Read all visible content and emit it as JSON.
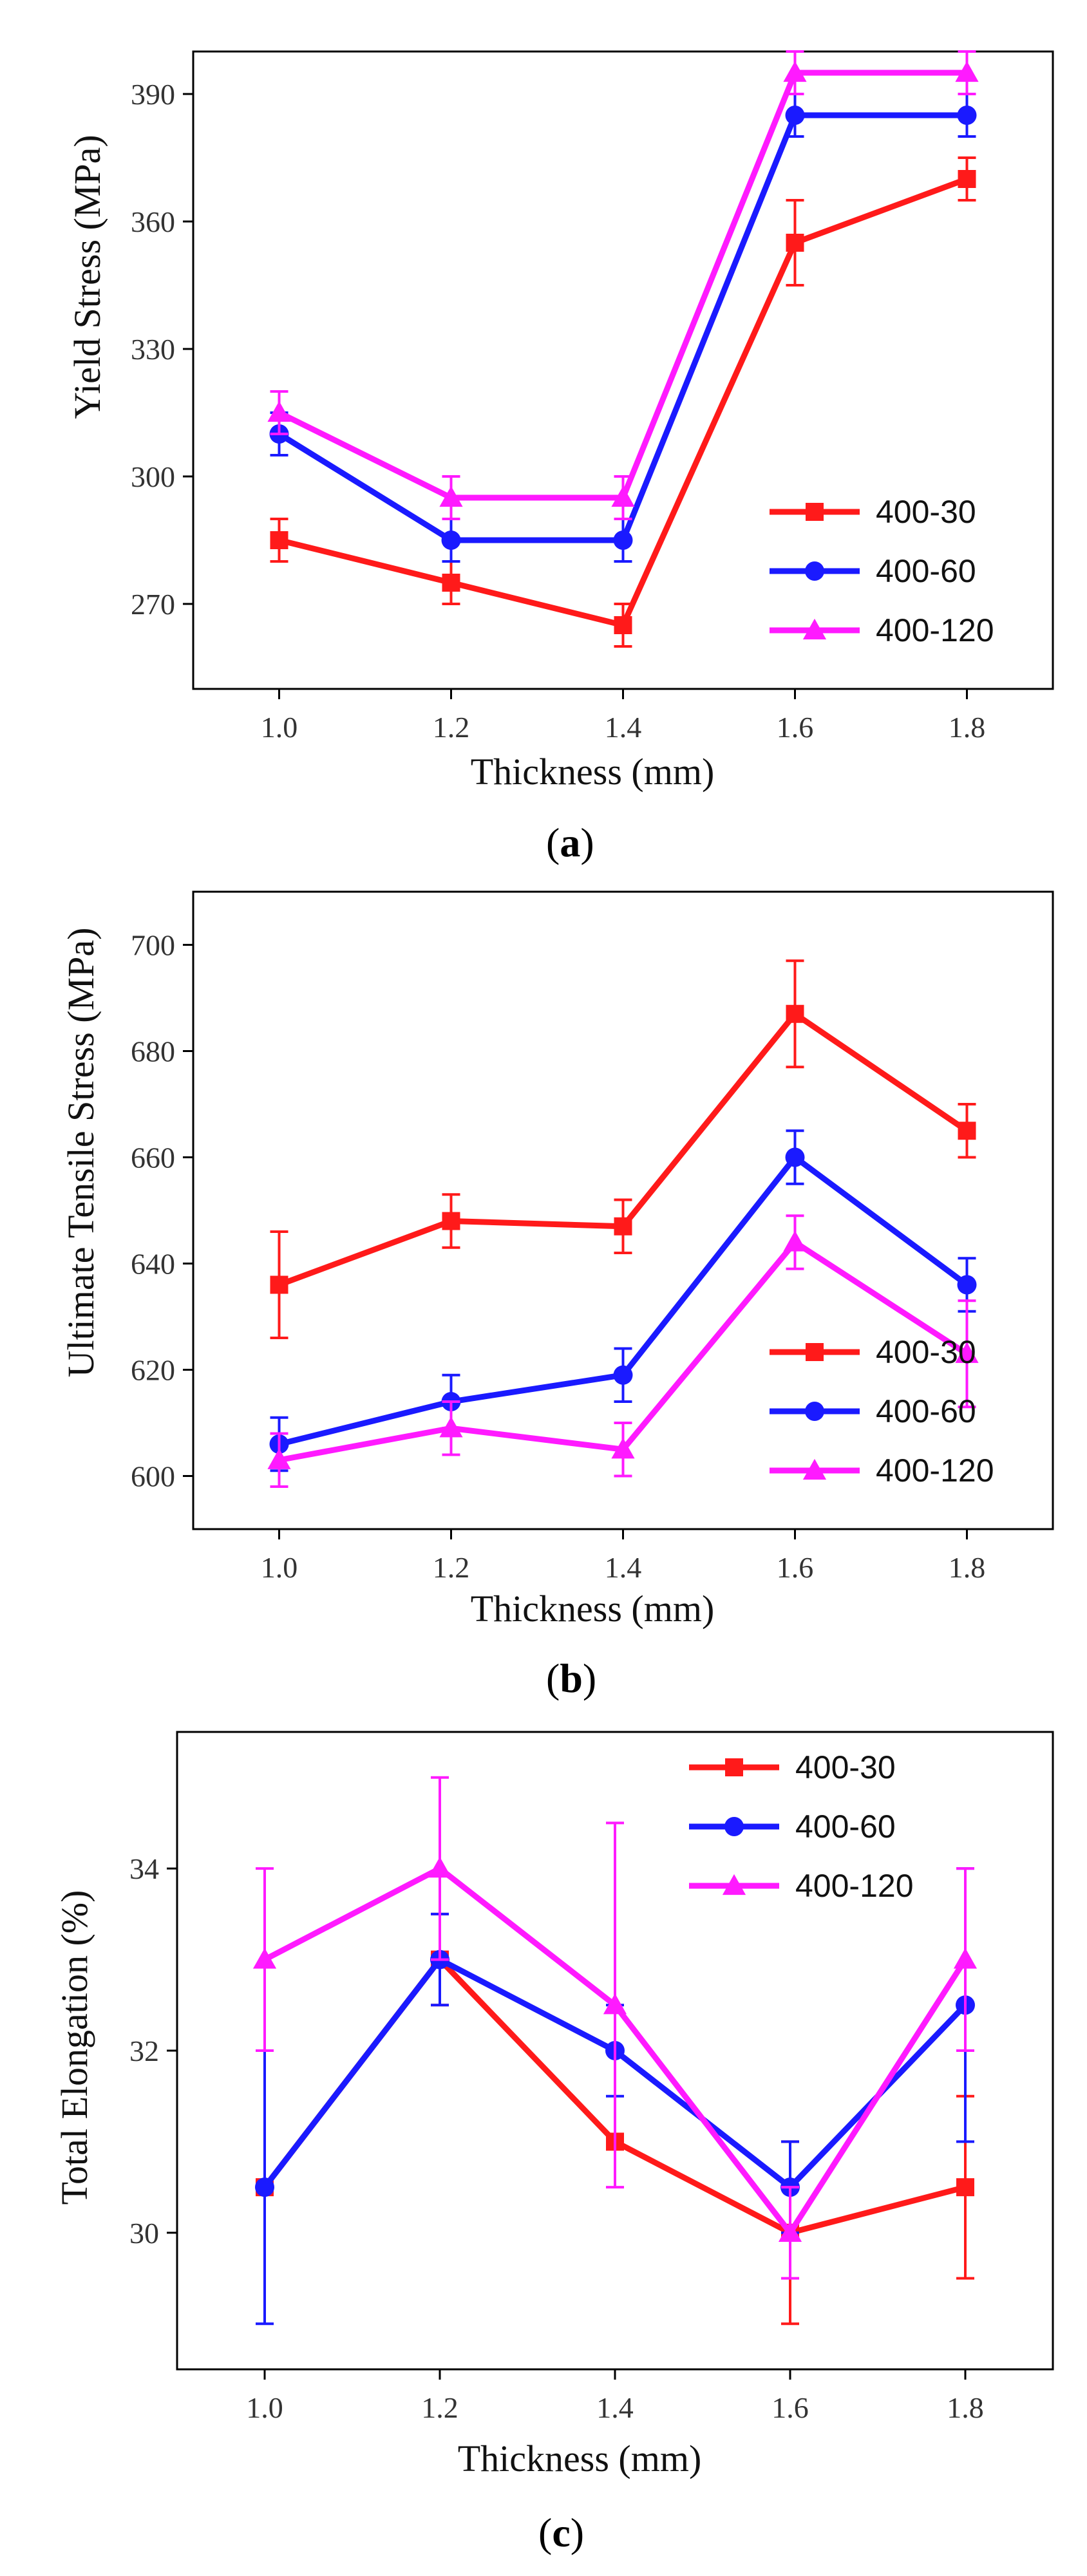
{
  "colors": {
    "400-30": "#ff1a1a",
    "400-60": "#1a1aff",
    "400-120": "#ff1aff"
  },
  "chart_data": [
    {
      "type": "line",
      "panel": "a",
      "xlabel": "Thickness (mm)",
      "ylabel": "Yield Stress (MPa)",
      "xlim": [
        0.9,
        1.9
      ],
      "ylim": [
        250,
        400
      ],
      "xticks": [
        1.0,
        1.2,
        1.4,
        1.6,
        1.8
      ],
      "xtick_labels": [
        "1.0",
        "1.2",
        "1.4",
        "1.6",
        "1.8"
      ],
      "yticks": [
        270,
        300,
        330,
        360,
        390
      ],
      "ytick_labels": [
        "270",
        "300",
        "330",
        "360",
        "390"
      ],
      "legend_position": "bottom-right",
      "x": [
        1.0,
        1.2,
        1.4,
        1.6,
        1.8
      ],
      "series": [
        {
          "name": "400-30",
          "marker": "square",
          "values": [
            285,
            275,
            265,
            355,
            370
          ],
          "errors": [
            5,
            5,
            5,
            10,
            5
          ]
        },
        {
          "name": "400-60",
          "marker": "circle",
          "values": [
            310,
            285,
            285,
            385,
            385
          ],
          "errors": [
            5,
            5,
            5,
            5,
            5
          ]
        },
        {
          "name": "400-120",
          "marker": "triangle",
          "values": [
            315,
            295,
            295,
            395,
            395
          ],
          "errors": [
            5,
            5,
            5,
            5,
            5
          ]
        }
      ]
    },
    {
      "type": "line",
      "panel": "b",
      "xlabel": "Thickness (mm)",
      "ylabel": "Ultimate Tensile Stress (MPa)",
      "xlim": [
        0.9,
        1.9
      ],
      "ylim": [
        590,
        710
      ],
      "xticks": [
        1.0,
        1.2,
        1.4,
        1.6,
        1.8
      ],
      "xtick_labels": [
        "1.0",
        "1.2",
        "1.4",
        "1.6",
        "1.8"
      ],
      "yticks": [
        600,
        620,
        640,
        660,
        680,
        700
      ],
      "ytick_labels": [
        "600",
        "620",
        "640",
        "660",
        "680",
        "700"
      ],
      "legend_position": "bottom-right",
      "x": [
        1.0,
        1.2,
        1.4,
        1.6,
        1.8
      ],
      "series": [
        {
          "name": "400-30",
          "marker": "square",
          "values": [
            636,
            648,
            647,
            687,
            665
          ],
          "errors": [
            10,
            5,
            5,
            10,
            5
          ]
        },
        {
          "name": "400-60",
          "marker": "circle",
          "values": [
            606,
            614,
            619,
            660,
            636
          ],
          "errors": [
            5,
            5,
            5,
            5,
            5
          ]
        },
        {
          "name": "400-120",
          "marker": "triangle",
          "values": [
            603,
            609,
            605,
            644,
            623
          ],
          "errors": [
            5,
            5,
            5,
            5,
            10
          ]
        }
      ]
    },
    {
      "type": "line",
      "panel": "c",
      "xlabel": "Thickness (mm)",
      "ylabel": "Total Elongation (%)",
      "xlim": [
        0.9,
        1.9
      ],
      "ylim": [
        28.5,
        35.5
      ],
      "xticks": [
        1.0,
        1.2,
        1.4,
        1.6,
        1.8
      ],
      "xtick_labels": [
        "1.0",
        "1.2",
        "1.4",
        "1.6",
        "1.8"
      ],
      "yticks": [
        30,
        32,
        34
      ],
      "ytick_labels": [
        "30",
        "32",
        "34"
      ],
      "legend_position": "top-right",
      "x": [
        1.0,
        1.2,
        1.4,
        1.6,
        1.8
      ],
      "series": [
        {
          "name": "400-30",
          "marker": "square",
          "values": [
            30.5,
            33.0,
            31.0,
            30.0,
            30.5
          ],
          "errors": [
            0,
            0.5,
            0,
            1.0,
            1.0
          ]
        },
        {
          "name": "400-60",
          "marker": "circle",
          "values": [
            30.5,
            33.0,
            32.0,
            30.5,
            32.5
          ],
          "errors": [
            1.5,
            0.5,
            0.5,
            0.5,
            1.5
          ]
        },
        {
          "name": "400-120",
          "marker": "triangle",
          "values": [
            33.0,
            34.0,
            32.5,
            30.0,
            33.0
          ],
          "errors": [
            1.0,
            1.0,
            2.0,
            0.5,
            1.0
          ]
        }
      ]
    }
  ],
  "panel_labels": [
    "a",
    "b",
    "c"
  ]
}
